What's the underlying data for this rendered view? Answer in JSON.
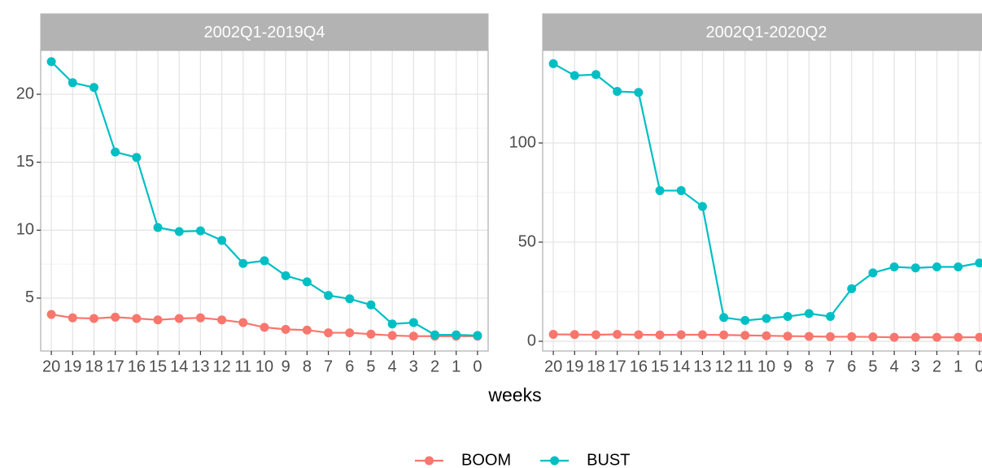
{
  "chart_data": [
    {
      "type": "line",
      "title": "2002Q1-2019Q4",
      "categories": [
        "20",
        "19",
        "18",
        "17",
        "16",
        "15",
        "14",
        "13",
        "12",
        "11",
        "10",
        "9",
        "8",
        "7",
        "6",
        "5",
        "4",
        "3",
        "2",
        "1",
        "0"
      ],
      "series": [
        {
          "name": "BOOM",
          "color": "#F8766D",
          "values": [
            3.8,
            3.55,
            3.5,
            3.6,
            3.5,
            3.4,
            3.5,
            3.55,
            3.4,
            3.2,
            2.85,
            2.7,
            2.65,
            2.45,
            2.45,
            2.35,
            2.25,
            2.2,
            2.2,
            2.2,
            2.2
          ]
        },
        {
          "name": "BUST",
          "color": "#00BFC4",
          "values": [
            22.4,
            20.85,
            20.5,
            15.75,
            15.35,
            10.2,
            9.9,
            9.95,
            9.25,
            7.55,
            7.75,
            6.65,
            6.2,
            5.2,
            4.95,
            4.5,
            3.1,
            3.2,
            2.3,
            2.3,
            2.25
          ]
        }
      ],
      "ylim": [
        1.11,
        23.23
      ],
      "yticks": [
        5,
        10,
        15,
        20
      ],
      "grid": true
    },
    {
      "type": "line",
      "title": "2002Q1-2020Q2",
      "categories": [
        "20",
        "19",
        "18",
        "17",
        "16",
        "15",
        "14",
        "13",
        "12",
        "11",
        "10",
        "9",
        "8",
        "7",
        "6",
        "5",
        "4",
        "3",
        "2",
        "1",
        "0"
      ],
      "series": [
        {
          "name": "BOOM",
          "color": "#F8766D",
          "values": [
            3.5,
            3.4,
            3.3,
            3.5,
            3.3,
            3.2,
            3.3,
            3.3,
            3.2,
            3.0,
            2.8,
            2.6,
            2.5,
            2.3,
            2.3,
            2.2,
            2.0,
            2.0,
            2.0,
            2.0,
            2.0
          ]
        },
        {
          "name": "BUST",
          "color": "#00BFC4",
          "values": [
            140,
            134,
            134.5,
            126,
            125.5,
            76,
            76,
            68,
            12,
            10.5,
            11.5,
            12.5,
            14,
            12.5,
            26.5,
            34.5,
            37.5,
            37,
            37.5,
            37.5,
            39.5
          ]
        }
      ],
      "ylim": [
        -4.9,
        146.7
      ],
      "yticks": [
        0,
        50,
        100
      ],
      "grid": true
    }
  ],
  "xlabel": "weeks",
  "legend": "bottom"
}
